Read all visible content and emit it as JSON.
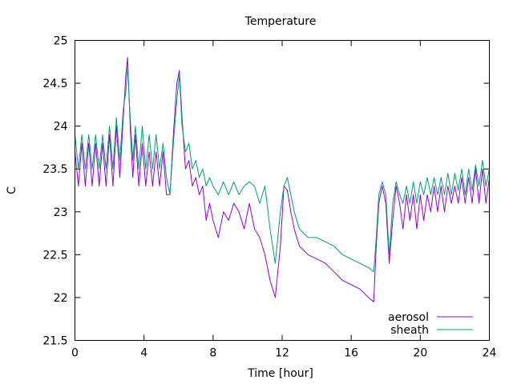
{
  "chart_data": {
    "type": "line",
    "title": "Temperature",
    "xlabel": "Time [hour]",
    "ylabel": "C",
    "xlim": [
      0,
      24
    ],
    "ylim": [
      21.5,
      25
    ],
    "xticks": [
      0,
      4,
      8,
      12,
      16,
      20,
      24
    ],
    "yticks": [
      21.5,
      22,
      22.5,
      23,
      23.5,
      24,
      24.5,
      25
    ],
    "ytick_labels": [
      "21.5",
      "22",
      "22.5",
      "23",
      "23.5",
      "24",
      "24.5",
      "25"
    ],
    "grid": false,
    "legend": "bottom-right",
    "series": [
      {
        "name": "aerosol",
        "color": "#9400d3",
        "x": [
          0,
          0.2,
          0.4,
          0.6,
          0.8,
          1.0,
          1.2,
          1.4,
          1.6,
          1.8,
          2.0,
          2.2,
          2.4,
          2.6,
          2.8,
          2.95,
          3.05,
          3.2,
          3.35,
          3.5,
          3.7,
          3.9,
          4.1,
          4.3,
          4.5,
          4.7,
          4.9,
          5.1,
          5.3,
          5.5,
          5.7,
          5.9,
          6.05,
          6.2,
          6.4,
          6.6,
          6.8,
          7.0,
          7.2,
          7.4,
          7.6,
          7.8,
          8.0,
          8.3,
          8.6,
          8.9,
          9.2,
          9.5,
          9.8,
          10.1,
          10.4,
          10.7,
          11.0,
          11.3,
          11.6,
          11.9,
          12.1,
          12.3,
          12.5,
          12.7,
          13.0,
          13.5,
          14.0,
          14.5,
          15.0,
          15.5,
          16.0,
          16.5,
          17.0,
          17.3,
          17.45,
          17.6,
          17.8,
          18.0,
          18.2,
          18.4,
          18.6,
          18.8,
          19.0,
          19.2,
          19.4,
          19.6,
          19.8,
          20.0,
          20.2,
          20.4,
          20.6,
          20.8,
          21.0,
          21.2,
          21.4,
          21.6,
          21.8,
          22.0,
          22.2,
          22.4,
          22.6,
          22.8,
          23.0,
          23.2,
          23.4,
          23.6,
          23.8,
          24.0
        ],
        "values": [
          23.7,
          23.3,
          23.8,
          23.3,
          23.8,
          23.3,
          23.8,
          23.3,
          23.8,
          23.3,
          23.9,
          23.3,
          24.0,
          23.4,
          24.1,
          24.6,
          24.8,
          24.0,
          23.4,
          23.9,
          23.3,
          23.8,
          23.3,
          23.7,
          23.3,
          23.7,
          23.3,
          23.7,
          23.2,
          23.2,
          23.9,
          24.5,
          24.65,
          24.1,
          23.5,
          23.6,
          23.3,
          23.4,
          23.2,
          23.3,
          22.9,
          23.1,
          22.9,
          22.7,
          23.0,
          22.9,
          23.1,
          23.0,
          22.8,
          23.1,
          22.8,
          22.7,
          22.5,
          22.2,
          22.0,
          22.6,
          23.3,
          23.25,
          23.0,
          22.8,
          22.6,
          22.5,
          22.45,
          22.4,
          22.3,
          22.2,
          22.15,
          22.1,
          22.0,
          21.95,
          22.6,
          23.1,
          23.3,
          23.1,
          22.4,
          22.9,
          23.3,
          23.1,
          22.8,
          23.2,
          22.9,
          23.2,
          22.8,
          23.2,
          22.9,
          23.2,
          23.0,
          23.3,
          23.0,
          23.3,
          23.0,
          23.3,
          23.1,
          23.3,
          23.1,
          23.4,
          23.1,
          23.4,
          23.1,
          23.5,
          23.1,
          23.5,
          23.1,
          23.4
        ]
      },
      {
        "name": "sheath",
        "color": "#009e73",
        "x": [
          0,
          0.2,
          0.4,
          0.6,
          0.8,
          1.0,
          1.2,
          1.4,
          1.6,
          1.8,
          2.0,
          2.2,
          2.4,
          2.6,
          2.8,
          2.95,
          3.05,
          3.2,
          3.35,
          3.5,
          3.7,
          3.9,
          4.1,
          4.3,
          4.5,
          4.7,
          4.9,
          5.1,
          5.3,
          5.5,
          5.7,
          5.9,
          6.05,
          6.2,
          6.4,
          6.6,
          6.8,
          7.0,
          7.2,
          7.4,
          7.6,
          7.8,
          8.0,
          8.3,
          8.6,
          8.9,
          9.2,
          9.5,
          9.8,
          10.1,
          10.4,
          10.7,
          11.0,
          11.3,
          11.6,
          11.9,
          12.1,
          12.3,
          12.5,
          12.7,
          13.0,
          13.5,
          14.0,
          14.5,
          15.0,
          15.5,
          16.0,
          16.5,
          17.0,
          17.3,
          17.45,
          17.6,
          17.8,
          18.0,
          18.2,
          18.4,
          18.6,
          18.8,
          19.0,
          19.2,
          19.4,
          19.6,
          19.8,
          20.0,
          20.2,
          20.4,
          20.6,
          20.8,
          21.0,
          21.2,
          21.4,
          21.6,
          21.8,
          22.0,
          22.2,
          22.4,
          22.6,
          22.8,
          23.0,
          23.2,
          23.4,
          23.6,
          23.8,
          24.0
        ],
        "values": [
          23.9,
          23.5,
          23.9,
          23.5,
          23.9,
          23.5,
          23.9,
          23.5,
          23.9,
          23.5,
          24.0,
          23.5,
          24.1,
          23.6,
          24.2,
          24.4,
          24.7,
          24.1,
          23.6,
          24.0,
          23.5,
          24.0,
          23.5,
          23.9,
          23.5,
          23.9,
          23.5,
          23.8,
          23.4,
          23.2,
          23.8,
          24.3,
          24.6,
          24.0,
          23.7,
          23.8,
          23.5,
          23.6,
          23.4,
          23.5,
          23.3,
          23.4,
          23.3,
          23.2,
          23.35,
          23.2,
          23.35,
          23.2,
          23.3,
          23.35,
          23.3,
          23.1,
          23.3,
          22.8,
          22.4,
          23.0,
          23.3,
          23.4,
          23.2,
          23.0,
          22.8,
          22.7,
          22.7,
          22.65,
          22.6,
          22.5,
          22.45,
          22.4,
          22.35,
          22.3,
          22.7,
          23.2,
          23.35,
          23.2,
          22.5,
          23.1,
          23.35,
          23.2,
          23.1,
          23.3,
          23.1,
          23.35,
          23.1,
          23.35,
          23.2,
          23.4,
          23.2,
          23.4,
          23.2,
          23.4,
          23.2,
          23.45,
          23.2,
          23.45,
          23.25,
          23.5,
          23.2,
          23.5,
          23.25,
          23.55,
          23.3,
          23.6,
          23.3,
          23.5
        ]
      }
    ]
  }
}
